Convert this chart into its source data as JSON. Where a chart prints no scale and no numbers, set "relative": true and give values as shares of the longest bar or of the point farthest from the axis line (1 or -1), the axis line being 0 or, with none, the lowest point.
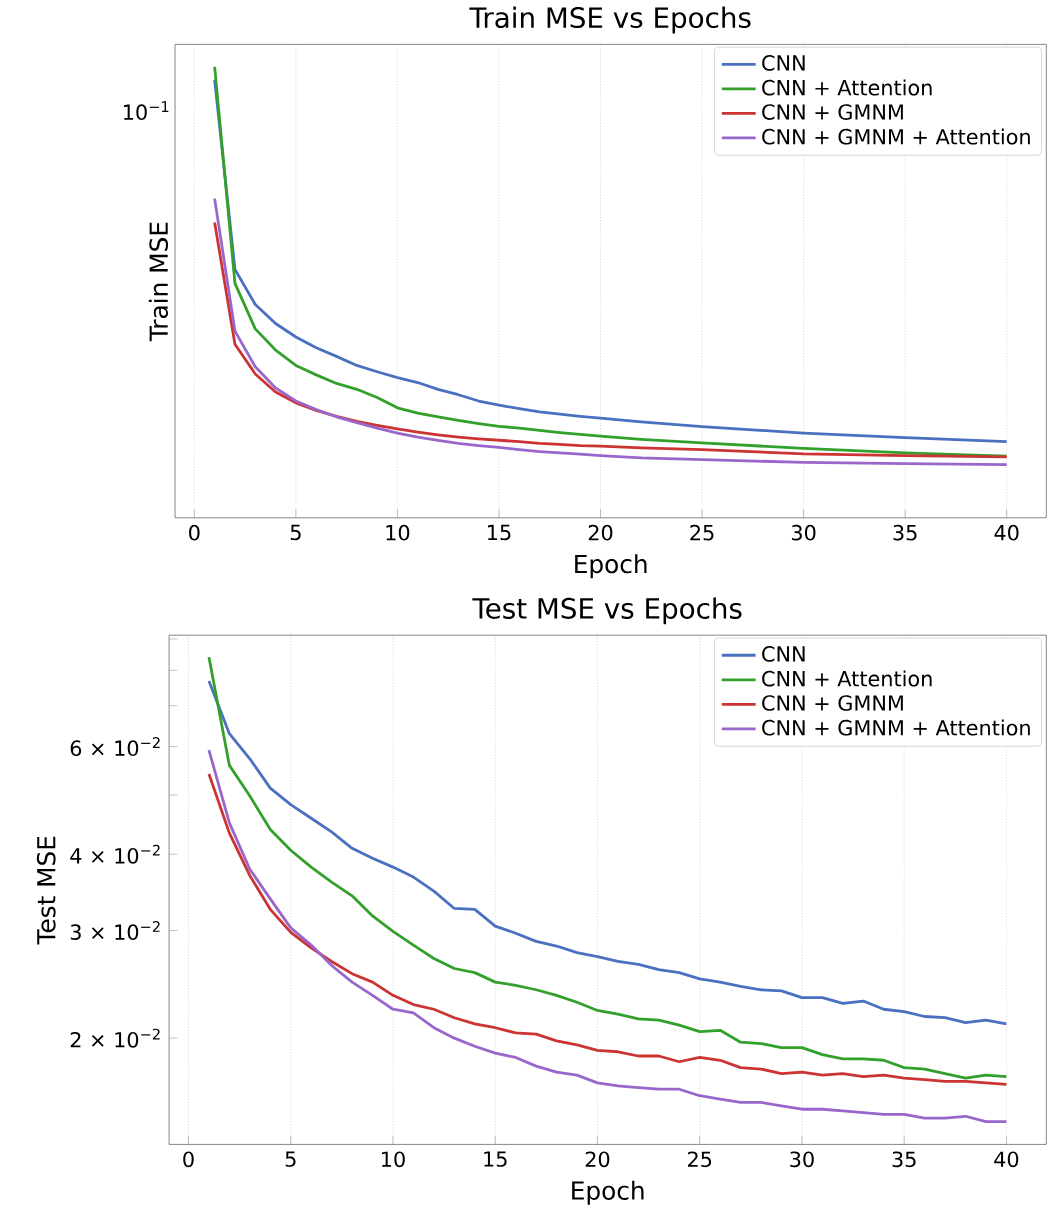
{
  "chart_data": [
    {
      "type": "line",
      "title": "Train MSE vs Epochs",
      "xlabel": "Epoch",
      "ylabel": "Train MSE",
      "grid": "x",
      "legend": "top right",
      "x": [
        1,
        2,
        3,
        4,
        5,
        6,
        7,
        8,
        9,
        10,
        11,
        12,
        13,
        14,
        15,
        16,
        17,
        18,
        19,
        20,
        22,
        25,
        30,
        35,
        40
      ],
      "xlim": [
        -0.95,
        41.95
      ],
      "xticks": [
        0,
        5,
        10,
        15,
        20,
        25,
        30,
        35,
        40
      ],
      "relative": true,
      "annotations": [
        "10$^{−1}$"
      ],
      "series": [
        {
          "name": "CNN",
          "color": "#4a70c0",
          "values": [
            0.971,
            0.551,
            0.473,
            0.431,
            0.401,
            0.377,
            0.358,
            0.338,
            0.324,
            0.311,
            0.3,
            0.285,
            0.273,
            0.259,
            0.25,
            0.242,
            0.235,
            0.23,
            0.225,
            0.221,
            0.213,
            0.202,
            0.188,
            0.178,
            0.169
          ]
        },
        {
          "name": "CNN + Attention",
          "color": "#33a02c",
          "values": [
            1,
            0.52,
            0.419,
            0.372,
            0.338,
            0.317,
            0.298,
            0.285,
            0.267,
            0.244,
            0.232,
            0.224,
            0.216,
            0.209,
            0.203,
            0.199,
            0.194,
            0.189,
            0.185,
            0.181,
            0.174,
            0.166,
            0.154,
            0.144,
            0.137
          ]
        },
        {
          "name": "CNN + GMNM",
          "color": "#cc3333",
          "values": [
            0.655,
            0.385,
            0.319,
            0.279,
            0.255,
            0.238,
            0.225,
            0.214,
            0.205,
            0.197,
            0.19,
            0.184,
            0.179,
            0.175,
            0.172,
            0.169,
            0.165,
            0.163,
            0.16,
            0.159,
            0.155,
            0.151,
            0.142,
            0.138,
            0.135
          ]
        },
        {
          "name": "CNN + GMNM + Attention",
          "color": "#9966cc",
          "values": [
            0.708,
            0.414,
            0.335,
            0.288,
            0.259,
            0.24,
            0.224,
            0.211,
            0.199,
            0.188,
            0.179,
            0.172,
            0.165,
            0.16,
            0.156,
            0.151,
            0.147,
            0.144,
            0.141,
            0.138,
            0.133,
            0.129,
            0.123,
            0.12,
            0.118
          ]
        }
      ]
    },
    {
      "type": "line",
      "title": "Test MSE vs Epochs",
      "xlabel": "Epoch",
      "ylabel": "Test MSE",
      "log": true,
      "grid": "x",
      "legend": "top right",
      "x": [
        1,
        2,
        3,
        4,
        5,
        6,
        7,
        8,
        9,
        10,
        11,
        12,
        13,
        14,
        15,
        16,
        17,
        18,
        19,
        20,
        21,
        22,
        23,
        24,
        25,
        26,
        27,
        28,
        29,
        30,
        31,
        32,
        33,
        34,
        35,
        36,
        37,
        38,
        39,
        40
      ],
      "xlim": [
        -0.95,
        41.95
      ],
      "xticks": [
        0,
        5,
        10,
        15,
        20,
        25,
        30,
        35,
        40
      ],
      "ylim": [
        0.0134,
        0.0913
      ],
      "yticks": [
        {
          "value": 0.02,
          "label": "2 × 10$^{−2}$"
        },
        {
          "value": 0.03,
          "label": "3 × 10$^{−2}$"
        },
        {
          "value": 0.04,
          "label": "4 × 10$^{−2}$"
        },
        {
          "value": 0.05,
          "label": null
        },
        {
          "value": 0.06,
          "label": "6 × 10$^{−2}$"
        },
        {
          "value": 0.07,
          "label": null
        },
        {
          "value": 0.08,
          "label": null
        },
        {
          "value": 0.09,
          "label": null
        }
      ],
      "series": [
        {
          "name": "CNN",
          "color": "#4a70c0",
          "values": [
            0.0768,
            0.063,
            0.0573,
            0.0513,
            0.0482,
            0.0458,
            0.0435,
            0.0409,
            0.0394,
            0.0381,
            0.0367,
            0.0348,
            0.0326,
            0.0325,
            0.0305,
            0.0297,
            0.0288,
            0.0283,
            0.0276,
            0.0272,
            0.0267,
            0.0264,
            0.0259,
            0.0256,
            0.025,
            0.0247,
            0.0243,
            0.024,
            0.0239,
            0.0233,
            0.0233,
            0.0228,
            0.023,
            0.0223,
            0.0221,
            0.0217,
            0.0216,
            0.0212,
            0.0214,
            0.0211
          ]
        },
        {
          "name": "CNN + Attention",
          "color": "#33a02c",
          "values": [
            0.084,
            0.0559,
            0.0498,
            0.0439,
            0.0406,
            0.0381,
            0.036,
            0.0342,
            0.0317,
            0.0299,
            0.0284,
            0.027,
            0.026,
            0.0256,
            0.0247,
            0.0244,
            0.024,
            0.0235,
            0.0229,
            0.0222,
            0.0219,
            0.0215,
            0.0214,
            0.021,
            0.0205,
            0.0206,
            0.0197,
            0.0196,
            0.0193,
            0.0193,
            0.0188,
            0.0185,
            0.0185,
            0.0184,
            0.0179,
            0.0178,
            0.0175,
            0.0172,
            0.0174,
            0.0173
          ]
        },
        {
          "name": "CNN + GMNM",
          "color": "#cc3333",
          "values": [
            0.0541,
            0.0433,
            0.0369,
            0.0325,
            0.0298,
            0.0281,
            0.0267,
            0.0255,
            0.0247,
            0.0235,
            0.0227,
            0.0223,
            0.0216,
            0.0211,
            0.0208,
            0.0204,
            0.0203,
            0.0198,
            0.0195,
            0.0191,
            0.019,
            0.0187,
            0.0187,
            0.0183,
            0.0186,
            0.0184,
            0.0179,
            0.0178,
            0.0175,
            0.0176,
            0.0174,
            0.0175,
            0.0173,
            0.0174,
            0.0172,
            0.0171,
            0.017,
            0.017,
            0.0169,
            0.0168
          ]
        },
        {
          "name": "CNN + GMNM + Attention",
          "color": "#9966cc",
          "values": [
            0.0592,
            0.045,
            0.0378,
            0.0338,
            0.0303,
            0.0284,
            0.0263,
            0.0247,
            0.0235,
            0.0223,
            0.022,
            0.0208,
            0.02,
            0.0194,
            0.0189,
            0.0186,
            0.018,
            0.0176,
            0.0174,
            0.0169,
            0.0167,
            0.0166,
            0.0165,
            0.0165,
            0.0161,
            0.0159,
            0.0157,
            0.0157,
            0.0155,
            0.0153,
            0.0153,
            0.0152,
            0.0151,
            0.015,
            0.015,
            0.0148,
            0.0148,
            0.0149,
            0.0146,
            0.0146
          ]
        }
      ]
    }
  ]
}
